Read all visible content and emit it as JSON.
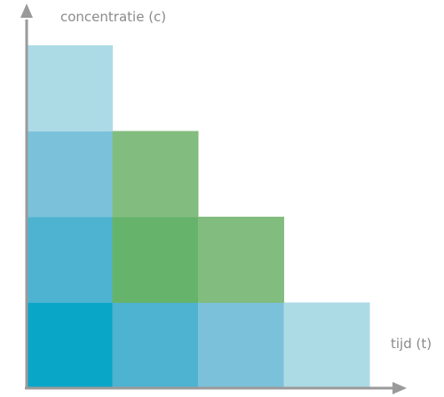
{
  "labels": {
    "y_axis": "concentratie (c)",
    "x_axis": "tijd (t)"
  },
  "colors": {
    "axis": "#9a9a9a",
    "blue_darkest": "#0aa6c8",
    "blue_dark": "#4db3d1",
    "blue_mid": "#7cc1da",
    "blue_light": "#acdbe6",
    "green_dark": "#66b36b",
    "green_light": "#82bd7f"
  },
  "grid": {
    "columns": 4,
    "rows": 4,
    "cells": [
      {
        "col": 0,
        "row": 0,
        "color": "blue_darkest"
      },
      {
        "col": 1,
        "row": 0,
        "color": "blue_dark"
      },
      {
        "col": 2,
        "row": 0,
        "color": "blue_mid"
      },
      {
        "col": 3,
        "row": 0,
        "color": "blue_light"
      },
      {
        "col": 0,
        "row": 1,
        "color": "blue_dark"
      },
      {
        "col": 1,
        "row": 1,
        "color": "green_dark"
      },
      {
        "col": 2,
        "row": 1,
        "color": "green_light"
      },
      {
        "col": 0,
        "row": 2,
        "color": "blue_mid"
      },
      {
        "col": 1,
        "row": 2,
        "color": "green_light"
      },
      {
        "col": 0,
        "row": 3,
        "color": "blue_light"
      }
    ]
  }
}
